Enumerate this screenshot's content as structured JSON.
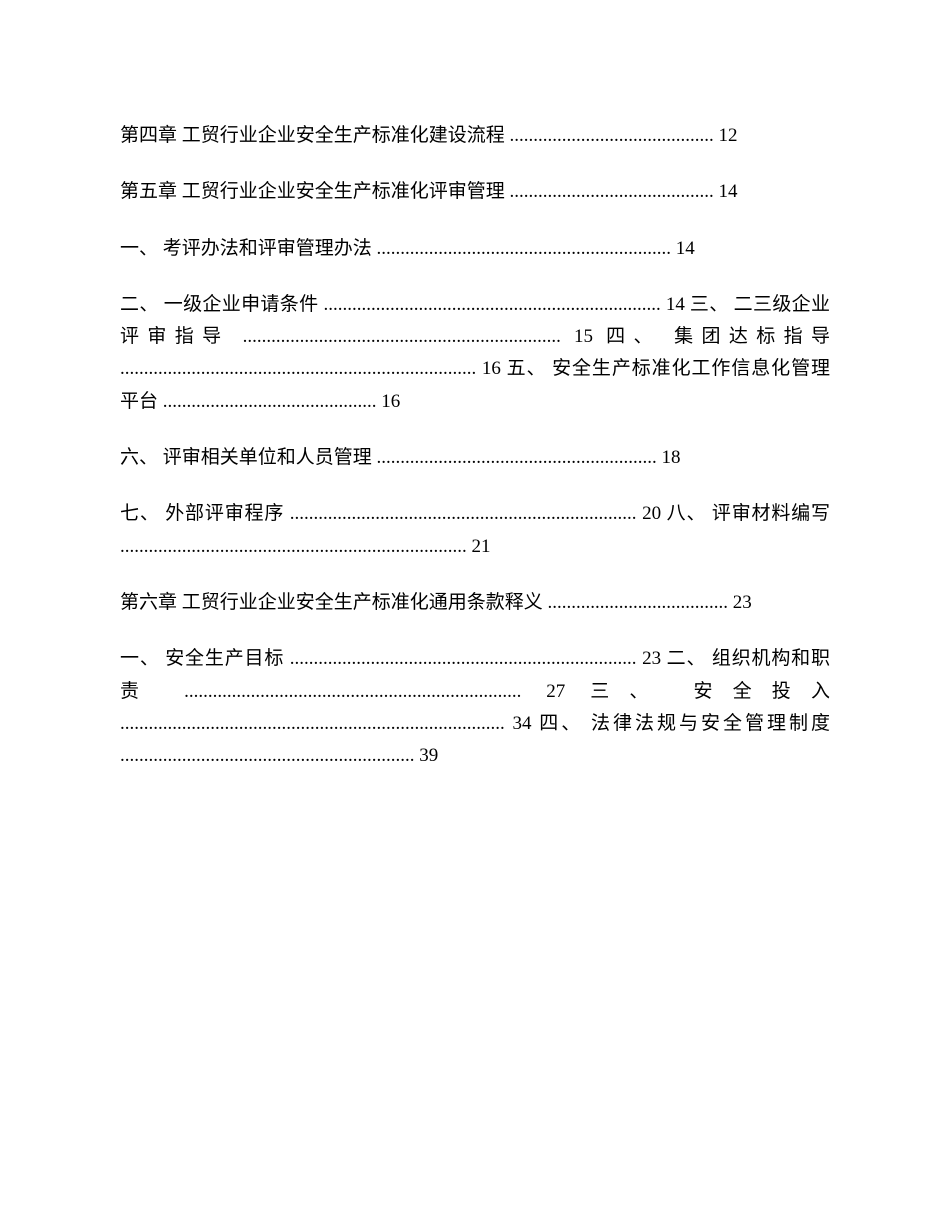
{
  "font_size": 19,
  "line_height": 1.7,
  "text_color": "#000000",
  "background_color": "#ffffff",
  "entries": [
    {
      "text": "第四章 工贸行业企业安全生产标准化建设流程 ........................................... 12"
    },
    {
      "text": "第五章 工贸行业企业安全生产标准化评审管理 ........................................... 14"
    },
    {
      "text": "一、 考评办法和评审管理办法 .............................................................. 14"
    },
    {
      "text": "二、 一级企业申请条件 ....................................................................... 14 三、 二三级企业评审指导 ................................................................... 15 四、 集团达标指导 ........................................................................... 16 五、 安全生产标准化工作信息化管理平台 ............................................. 16"
    },
    {
      "text": "六、 评审相关单位和人员管理 ........................................................... 18"
    },
    {
      "text": "七、 外部评审程序 ......................................................................... 20 八、 评审材料编写 ......................................................................... 21"
    },
    {
      "text": "第六章 工贸行业企业安全生产标准化通用条款释义 ...................................... 23"
    },
    {
      "text": "一、 安全生产目标 ......................................................................... 23 二、 组织机构和职责 ....................................................................... 27 三、 安全投入 ................................................................................. 34 四、 法律法规与安全管理制度 .............................................................. 39"
    }
  ]
}
